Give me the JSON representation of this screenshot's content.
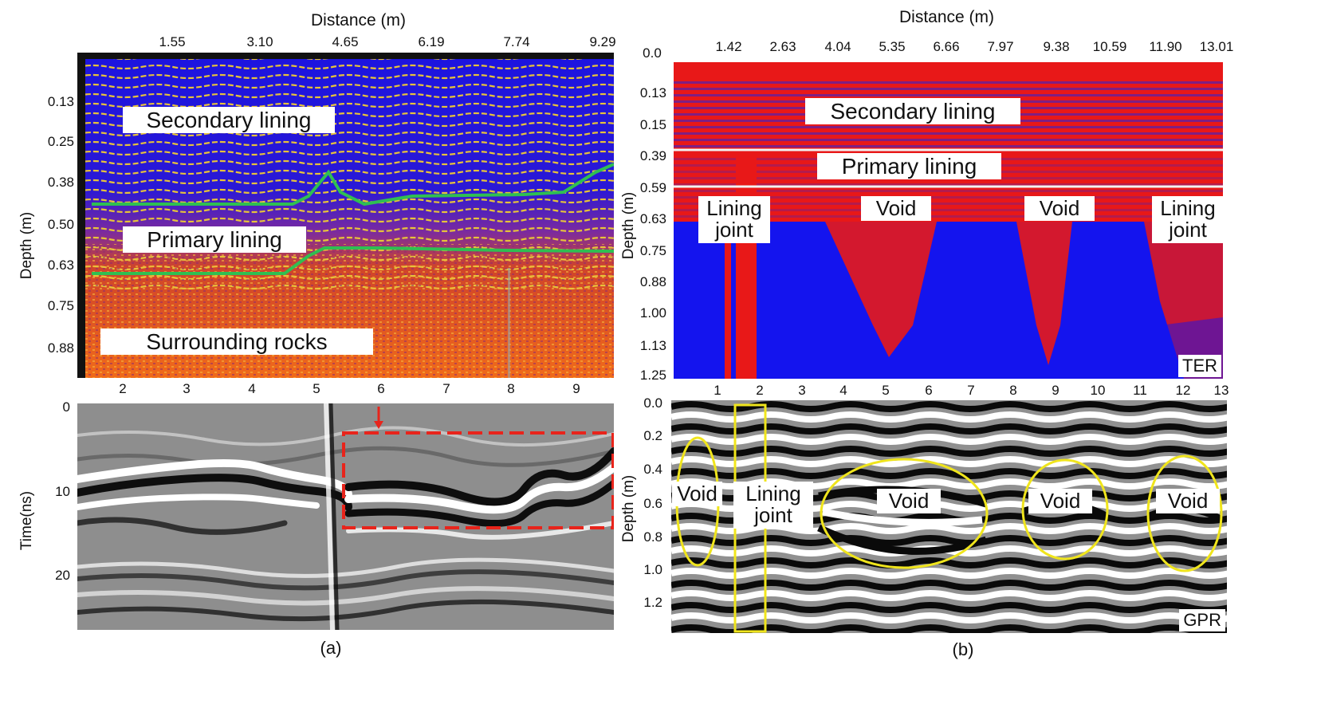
{
  "figure_a": {
    "caption": "(a)",
    "top": {
      "title": "Distance (m)",
      "ylabel": "Depth (m)",
      "x_ticks": [
        "1.55",
        "3.10",
        "4.65",
        "6.19",
        "7.74",
        "9.29"
      ],
      "y_ticks": [
        "0.13",
        "0.25",
        "0.38",
        "0.50",
        "0.63",
        "0.75",
        "0.88"
      ],
      "labels": [
        "Secondary lining",
        "Primary lining",
        "Surrounding rocks"
      ]
    },
    "bottom": {
      "ylabel": "Time(ns)",
      "x_ticks": [
        "2",
        "3",
        "4",
        "5",
        "6",
        "7",
        "8",
        "9"
      ],
      "y_ticks": [
        "0",
        "10",
        "20"
      ]
    }
  },
  "figure_b": {
    "caption": "(b)",
    "top": {
      "title": "Distance (m)",
      "ylabel": "Depth (m)",
      "x_ticks": [
        "0.0",
        "1.42",
        "2.63",
        "4.04",
        "5.35",
        "6.66",
        "7.97",
        "9.38",
        "10.59",
        "11.90",
        "13.01"
      ],
      "y_ticks": [
        "0.13",
        "0.15",
        "0.39",
        "0.59",
        "0.63",
        "0.75",
        "0.88",
        "1.00",
        "1.13",
        "1.25"
      ],
      "labels": {
        "secondary": "Secondary lining",
        "primary": "Primary lining",
        "joint_left": [
          "Lining",
          "joint"
        ],
        "void1": "Void",
        "void2": "Void",
        "joint_right": [
          "Lining",
          "joint"
        ]
      },
      "tag": "TER"
    },
    "bottom": {
      "ylabel": "Depth (m)",
      "x_ticks": [
        "1",
        "2",
        "3",
        "4",
        "5",
        "6",
        "7",
        "8",
        "9",
        "10",
        "11",
        "12",
        "13"
      ],
      "y_ticks": [
        "0.0",
        "0.2",
        "0.4",
        "0.6",
        "0.8",
        "1.0",
        "1.2"
      ],
      "labels": {
        "void_a": "Void",
        "joint": [
          "Lining",
          "joint"
        ],
        "void_b": "Void",
        "void_c": "Void",
        "void_d": "Void"
      },
      "tag": "GPR"
    }
  },
  "chart_data": [
    {
      "type": "heatmap",
      "title": "Distance (m)",
      "xlabel": "Distance (m)",
      "ylabel": "Depth (m)",
      "x_ticks": [
        1.55,
        3.1,
        4.65,
        6.19,
        7.74,
        9.29
      ],
      "y_ticks": [
        0.13,
        0.25,
        0.38,
        0.5,
        0.63,
        0.75,
        0.88
      ],
      "annotations": [
        "Secondary lining",
        "Primary lining",
        "Surrounding rocks"
      ]
    },
    {
      "type": "heatmap",
      "xlabel": "",
      "ylabel": "Time(ns)",
      "x_ticks": [
        2,
        3,
        4,
        5,
        6,
        7,
        8,
        9
      ],
      "y_ticks": [
        0,
        10,
        20
      ]
    },
    {
      "type": "heatmap",
      "title": "Distance (m)",
      "xlabel": "Distance (m)",
      "ylabel": "Depth (m)",
      "x_ticks": [
        0.0,
        1.42,
        2.63,
        4.04,
        5.35,
        6.66,
        7.97,
        9.38,
        10.59,
        11.9,
        13.01
      ],
      "y_ticks": [
        0.13,
        0.15,
        0.39,
        0.59,
        0.63,
        0.75,
        0.88,
        1.0,
        1.13,
        1.25
      ],
      "annotations": [
        "Secondary lining",
        "Primary lining",
        "Lining joint",
        "Void",
        "Void",
        "Lining joint",
        "TER"
      ]
    },
    {
      "type": "heatmap",
      "xlabel": "",
      "ylabel": "Depth (m)",
      "x_ticks": [
        1,
        2,
        3,
        4,
        5,
        6,
        7,
        8,
        9,
        10,
        11,
        12,
        13
      ],
      "y_ticks": [
        0.0,
        0.2,
        0.4,
        0.6,
        0.8,
        1.0,
        1.2
      ],
      "annotations": [
        "Void",
        "Lining joint",
        "Void",
        "Void",
        "Void",
        "GPR"
      ]
    }
  ]
}
